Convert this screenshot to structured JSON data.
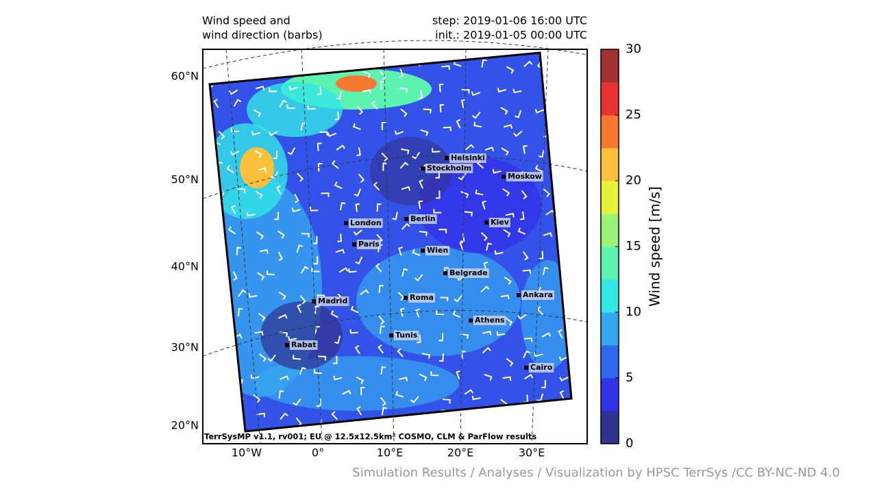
{
  "header": {
    "title": [
      "Wind speed and",
      "wind direction (barbs)"
    ],
    "step": "step: 2019-01-06 16:00 UTC",
    "init": "init.: 2019-01-05 00:00 UTC"
  },
  "map": {
    "lat_labels": [
      "60°N",
      "50°N",
      "40°N",
      "30°N",
      "20°N"
    ],
    "lon_labels": [
      "10°W",
      "0°",
      "10°E",
      "20°E",
      "30°E"
    ],
    "cities": [
      "Helsinki",
      "Stockholm",
      "Moskow",
      "London",
      "Berlin",
      "Kiev",
      "Paris",
      "Wien",
      "Belgrade",
      "Madrid",
      "Roma",
      "Ankara",
      "Athens",
      "Tunis",
      "Rabat",
      "Cairo"
    ],
    "footer": "TerrSysMP v1.1, rv001; EU @ 12.5x12.5km² COSMO, CLM & ParFlow results"
  },
  "colorbar": {
    "label": "Wind speed [m/s]",
    "lim": [
      0,
      30
    ],
    "ticks": [
      0,
      5,
      10,
      15,
      20,
      25,
      30
    ],
    "colors": [
      "#30338f",
      "#3232e6",
      "#3268ee",
      "#36a6f0",
      "#33e6e6",
      "#5cf2b0",
      "#9cf27a",
      "#e8f23a",
      "#fcc03a",
      "#f87830",
      "#e83232",
      "#a03232"
    ]
  },
  "credit": "Simulation Results / Analyses / Visualization by HPSC TerrSys /CC BY-NC-ND 4.0"
}
